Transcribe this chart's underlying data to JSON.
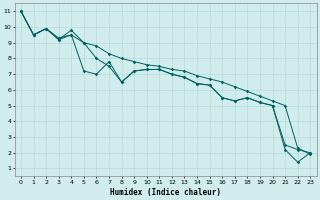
{
  "title": "",
  "xlabel": "Humidex (Indice chaleur)",
  "ylabel": "",
  "background_color": "#d0ecec",
  "grid_color": "#b8d8d8",
  "line_color": "#006060",
  "xlim": [
    -0.5,
    23.5
  ],
  "ylim": [
    0.5,
    11.5
  ],
  "xticks": [
    0,
    1,
    2,
    3,
    4,
    5,
    6,
    7,
    8,
    9,
    10,
    11,
    12,
    13,
    14,
    15,
    16,
    17,
    18,
    19,
    20,
    21,
    22,
    23
  ],
  "yticks": [
    1,
    2,
    3,
    4,
    5,
    6,
    7,
    8,
    9,
    10,
    11
  ],
  "line1_x": [
    0,
    1,
    2,
    3,
    4,
    5,
    6,
    7,
    8,
    9,
    10,
    11,
    12,
    13,
    14,
    15,
    16,
    17,
    18,
    19,
    20,
    21,
    22,
    23
  ],
  "line1_y": [
    11,
    9.5,
    9.9,
    9.2,
    9.5,
    7.2,
    7.0,
    7.8,
    6.5,
    7.2,
    7.3,
    7.3,
    7.0,
    6.8,
    6.4,
    6.3,
    5.5,
    5.3,
    5.5,
    5.2,
    5.0,
    2.2,
    1.4,
    2.0
  ],
  "line2_x": [
    0,
    1,
    2,
    3,
    4,
    5,
    6,
    7,
    8,
    9,
    10,
    11,
    12,
    13,
    14,
    15,
    16,
    17,
    18,
    19,
    20,
    21,
    22,
    23
  ],
  "line2_y": [
    11,
    9.5,
    9.9,
    9.2,
    9.8,
    9.0,
    8.0,
    7.5,
    6.5,
    7.2,
    7.3,
    7.3,
    7.0,
    6.8,
    6.4,
    6.3,
    5.5,
    5.3,
    5.5,
    5.2,
    5.0,
    2.5,
    2.2,
    2.0
  ],
  "line3_x": [
    0,
    1,
    2,
    3,
    4,
    5,
    6,
    7,
    8,
    9,
    10,
    11,
    12,
    13,
    14,
    15,
    16,
    17,
    18,
    19,
    20,
    21,
    22,
    23
  ],
  "line3_y": [
    11,
    9.5,
    9.9,
    9.3,
    9.5,
    9.0,
    8.8,
    8.3,
    8.0,
    7.8,
    7.6,
    7.5,
    7.3,
    7.2,
    6.9,
    6.7,
    6.5,
    6.2,
    5.9,
    5.6,
    5.3,
    5.0,
    2.3,
    1.9
  ]
}
